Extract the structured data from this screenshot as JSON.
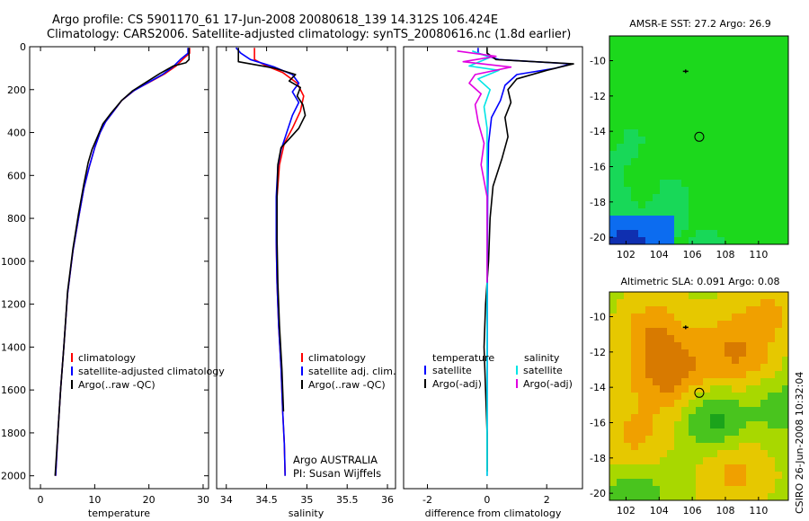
{
  "figure": {
    "title_line1": "Argo profile: CS 5901170_61 17-Jun-2008 20080618_139 14.312S 106.424E",
    "title_line2": "Climatology: CARS2006. Satellite-adjusted climatology: synTS_20080616.nc (1.8d earlier)",
    "side_label": "CSIRO 26-Jun-2008 10:32:04",
    "credit_line1": "Argo AUSTRALIA",
    "credit_line2": "PI: Susan Wijffels"
  },
  "colors": {
    "climatology": "#ff0000",
    "satellite": "#0000ff",
    "argo": "#000000",
    "cyan": "#00e5e5",
    "magenta": "#e000e0"
  },
  "chart_data": [
    {
      "type": "line",
      "id": "temperature",
      "xlabel": "temperature",
      "ylabel": "",
      "xlim": [
        -2,
        31
      ],
      "ylim": [
        2060,
        0
      ],
      "xticks": [
        0,
        10,
        20,
        30
      ],
      "yticks": [
        0,
        200,
        400,
        600,
        800,
        1000,
        1200,
        1400,
        1600,
        1800,
        2000
      ],
      "legend": [
        "climatology",
        "satellite-adjusted climatology",
        "Argo(..raw -QC)"
      ],
      "series": [
        {
          "name": "climatology",
          "color": "climatology",
          "points": [
            [
              27.5,
              5
            ],
            [
              27.5,
              30
            ],
            [
              26.2,
              60
            ],
            [
              25.0,
              90
            ],
            [
              23.0,
              125
            ],
            [
              20.5,
              160
            ],
            [
              17.5,
              200
            ],
            [
              15.0,
              250
            ],
            [
              13.5,
              300
            ],
            [
              12.0,
              350
            ],
            [
              11.0,
              400
            ],
            [
              10.0,
              470
            ],
            [
              9.0,
              560
            ],
            [
              8.0,
              660
            ],
            [
              7.0,
              800
            ],
            [
              6.0,
              950
            ],
            [
              5.0,
              1150
            ],
            [
              4.3,
              1400
            ],
            [
              3.7,
              1600
            ],
            [
              3.2,
              1800
            ],
            [
              2.8,
              2000
            ]
          ]
        },
        {
          "name": "satellite-adjusted climatology",
          "color": "satellite",
          "points": [
            [
              27.2,
              5
            ],
            [
              27.2,
              30
            ],
            [
              25.8,
              60
            ],
            [
              24.4,
              95
            ],
            [
              22.5,
              130
            ],
            [
              20.0,
              165
            ],
            [
              17.2,
              205
            ],
            [
              15.0,
              250
            ],
            [
              13.5,
              300
            ],
            [
              12.0,
              350
            ],
            [
              11.0,
              400
            ],
            [
              10.0,
              470
            ],
            [
              9.0,
              560
            ],
            [
              8.0,
              660
            ],
            [
              7.0,
              800
            ],
            [
              6.0,
              950
            ],
            [
              5.0,
              1150
            ],
            [
              4.3,
              1400
            ],
            [
              3.7,
              1600
            ],
            [
              3.2,
              1800
            ],
            [
              2.8,
              2000
            ]
          ]
        },
        {
          "name": "Argo(..raw -QC)",
          "color": "argo",
          "points": [
            [
              27.4,
              5
            ],
            [
              27.4,
              60
            ],
            [
              26.8,
              75
            ],
            [
              24.5,
              90
            ],
            [
              22.0,
              125
            ],
            [
              19.5,
              165
            ],
            [
              17.0,
              205
            ],
            [
              15.0,
              250
            ],
            [
              13.0,
              310
            ],
            [
              11.5,
              360
            ],
            [
              10.5,
              420
            ],
            [
              9.5,
              480
            ],
            [
              8.8,
              540
            ],
            [
              8.0,
              640
            ],
            [
              7.0,
              780
            ],
            [
              6.0,
              940
            ],
            [
              5.0,
              1140
            ],
            [
              4.3,
              1400
            ],
            [
              3.7,
              1600
            ],
            [
              3.2,
              1800
            ],
            [
              2.7,
              2000
            ]
          ]
        }
      ]
    },
    {
      "type": "line",
      "id": "salinity",
      "xlabel": "salinity",
      "ylabel": "",
      "xlim": [
        33.88,
        36.1
      ],
      "ylim": [
        2060,
        0
      ],
      "xticks": [
        34,
        34.5,
        35,
        35.5,
        36
      ],
      "yticks": [],
      "legend": [
        "climatology",
        "satellite adj. clim.",
        "Argo(..raw -QC)"
      ],
      "series": [
        {
          "name": "climatology",
          "color": "climatology",
          "points": [
            [
              34.35,
              5
            ],
            [
              34.35,
              60
            ],
            [
              34.5,
              90
            ],
            [
              34.7,
              120
            ],
            [
              34.88,
              170
            ],
            [
              34.96,
              230
            ],
            [
              34.92,
              300
            ],
            [
              34.82,
              380
            ],
            [
              34.72,
              450
            ],
            [
              34.66,
              550
            ],
            [
              34.63,
              700
            ],
            [
              34.62,
              900
            ],
            [
              34.63,
              1100
            ],
            [
              34.65,
              1300
            ],
            [
              34.68,
              1500
            ],
            [
              34.7,
              1700
            ],
            [
              34.72,
              1850
            ],
            [
              34.73,
              2000
            ]
          ]
        },
        {
          "name": "satellite adj. clim.",
          "color": "satellite",
          "points": [
            [
              34.12,
              5
            ],
            [
              34.18,
              30
            ],
            [
              34.3,
              60
            ],
            [
              34.6,
              95
            ],
            [
              34.82,
              130
            ],
            [
              34.9,
              170
            ],
            [
              34.82,
              210
            ],
            [
              34.9,
              260
            ],
            [
              34.82,
              320
            ],
            [
              34.75,
              400
            ],
            [
              34.68,
              480
            ],
            [
              34.64,
              560
            ],
            [
              34.62,
              700
            ],
            [
              34.62,
              900
            ],
            [
              34.63,
              1100
            ],
            [
              34.65,
              1300
            ],
            [
              34.68,
              1500
            ],
            [
              34.7,
              1700
            ],
            [
              34.72,
              1850
            ],
            [
              34.73,
              2000
            ]
          ]
        },
        {
          "name": "Argo(..raw -QC)",
          "color": "argo",
          "points": [
            [
              34.15,
              5
            ],
            [
              34.15,
              70
            ],
            [
              34.6,
              100
            ],
            [
              34.86,
              130
            ],
            [
              34.78,
              160
            ],
            [
              34.92,
              190
            ],
            [
              34.88,
              230
            ],
            [
              34.95,
              270
            ],
            [
              34.98,
              320
            ],
            [
              34.9,
              380
            ],
            [
              34.78,
              430
            ],
            [
              34.68,
              470
            ],
            [
              34.64,
              550
            ],
            [
              34.63,
              700
            ],
            [
              34.63,
              900
            ],
            [
              34.64,
              1100
            ],
            [
              34.66,
              1300
            ],
            [
              34.69,
              1500
            ],
            [
              34.71,
              1700
            ]
          ]
        }
      ]
    },
    {
      "type": "line",
      "id": "difference",
      "xlabel": "difference from climatology",
      "ylabel": "",
      "xlim": [
        -2.8,
        3.2
      ],
      "ylim": [
        2060,
        0
      ],
      "xticks": [
        -2,
        0,
        2
      ],
      "yticks": [],
      "legend_left_title": "temperature",
      "legend_right_title": "salinity",
      "legend_left": [
        "satellite",
        "Argo(-adj)"
      ],
      "legend_right": [
        "satellite",
        "Argo(-adj)"
      ],
      "series": [
        {
          "name": "temperature satellite",
          "color": "satellite",
          "points": [
            [
              -0.3,
              5
            ],
            [
              -0.3,
              30
            ],
            [
              0.4,
              60
            ],
            [
              2.8,
              80
            ],
            [
              2.3,
              100
            ],
            [
              1.0,
              130
            ],
            [
              0.6,
              180
            ],
            [
              0.45,
              250
            ],
            [
              0.15,
              330
            ],
            [
              0.05,
              450
            ],
            [
              0.02,
              700
            ],
            [
              0.01,
              1000
            ],
            [
              0,
              2000
            ]
          ]
        },
        {
          "name": "temperature Argo(-adj)",
          "color": "argo",
          "points": [
            [
              0,
              5
            ],
            [
              0,
              30
            ],
            [
              0.3,
              60
            ],
            [
              2.9,
              80
            ],
            [
              2.0,
              110
            ],
            [
              1.0,
              150
            ],
            [
              0.7,
              200
            ],
            [
              0.8,
              260
            ],
            [
              0.6,
              330
            ],
            [
              0.7,
              420
            ],
            [
              0.5,
              520
            ],
            [
              0.2,
              650
            ],
            [
              0.1,
              800
            ],
            [
              0.05,
              1000
            ],
            [
              -0.05,
              1200
            ],
            [
              -0.1,
              1400
            ],
            [
              -0.05,
              1600
            ],
            [
              0,
              1800
            ],
            [
              0,
              1980
            ]
          ]
        },
        {
          "name": "salinity satellite",
          "color": "cyan",
          "points": [
            [
              -0.5,
              20
            ],
            [
              0.1,
              50
            ],
            [
              -0.6,
              90
            ],
            [
              0.4,
              110
            ],
            [
              -0.3,
              150
            ],
            [
              0.1,
              200
            ],
            [
              -0.1,
              280
            ],
            [
              0,
              380
            ],
            [
              0,
              500
            ],
            [
              0,
              800
            ],
            [
              0,
              1200
            ],
            [
              0,
              2000
            ]
          ]
        },
        {
          "name": "salinity Argo(-adj)",
          "color": "magenta",
          "points": [
            [
              -1.0,
              20
            ],
            [
              0.3,
              45
            ],
            [
              -0.8,
              70
            ],
            [
              0.8,
              95
            ],
            [
              -0.4,
              130
            ],
            [
              -0.6,
              170
            ],
            [
              -0.2,
              220
            ],
            [
              -0.4,
              270
            ],
            [
              -0.3,
              350
            ],
            [
              -0.1,
              450
            ],
            [
              -0.2,
              550
            ],
            [
              0,
              700
            ],
            [
              0,
              900
            ],
            [
              0,
              1100
            ]
          ]
        }
      ]
    },
    {
      "type": "heatmap",
      "id": "sst",
      "title": "AMSR-E SST: 27.2  Argo: 26.9",
      "xlim": [
        101,
        111.8
      ],
      "ylim": [
        -20.4,
        -8.6
      ],
      "xticks": [
        102,
        104,
        106,
        108,
        110
      ],
      "yticks": [
        -10,
        -12,
        -14,
        -16,
        -18,
        -20
      ],
      "argo_position": [
        106.424,
        -14.312
      ],
      "marker": [
        105.6,
        -10.6
      ],
      "colors": [
        "#0f2fb0",
        "#0c6cf0",
        "#11c8e0",
        "#18d858",
        "#1cd81c",
        "#30dc12"
      ]
    },
    {
      "type": "heatmap",
      "id": "sla",
      "title": "Altimetric SLA: 0.091  Argo: 0.08",
      "xlim": [
        101,
        111.8
      ],
      "ylim": [
        -20.4,
        -8.6
      ],
      "xticks": [
        102,
        104,
        106,
        108,
        110
      ],
      "yticks": [
        -10,
        -12,
        -14,
        -16,
        -18,
        -20
      ],
      "argo_position": [
        106.424,
        -14.312
      ],
      "marker": [
        105.6,
        -10.6
      ],
      "colors": [
        "#1ba31b",
        "#49c41e",
        "#a8d800",
        "#e6c800",
        "#f0a000",
        "#d87a00",
        "#b85c10"
      ]
    }
  ]
}
